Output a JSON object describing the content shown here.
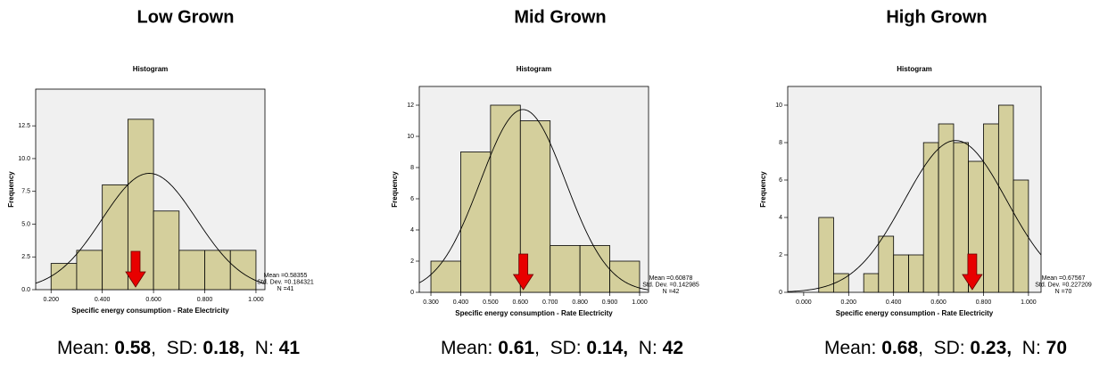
{
  "chart_data": [
    {
      "type": "histogram",
      "title": "Low Grown",
      "subtitle": "Histogram",
      "xlabel": "Specific energy consumption - Rate Electricity",
      "ylabel": "Frequency",
      "bins": [
        0.2,
        0.3,
        0.4,
        0.5,
        0.6,
        0.7,
        0.8,
        0.9,
        1.0
      ],
      "counts": [
        2,
        3,
        8,
        13,
        6,
        3,
        3,
        3
      ],
      "xlim": [
        0.14,
        1.035
      ],
      "ylim": [
        0,
        15.3
      ],
      "xticks": [
        {
          "value": 0.2,
          "label": "0.200"
        },
        {
          "value": 0.4,
          "label": "0.400"
        },
        {
          "value": 0.6,
          "label": "0.600"
        },
        {
          "value": 0.8,
          "label": "0.800"
        },
        {
          "value": 1.0,
          "label": "1.000"
        }
      ],
      "yticks": [
        {
          "value": 0,
          "label": "0.0"
        },
        2.5,
        {
          "value": 5,
          "label": "5.0"
        },
        7.5,
        {
          "value": 10,
          "label": "10.0"
        },
        12.5
      ],
      "color": "#d4cf9c",
      "stats": {
        "mean": {
          "value": 0.58355,
          "label": "Mean =0.58355"
        },
        "sd": {
          "value": 0.184321,
          "label": "Std. Dev. =0.184321"
        },
        "n": {
          "value": 41,
          "label": "N =41"
        }
      },
      "marker_x": 0.53,
      "marker_color": "#e80000",
      "caption": [
        {
          "text": "Mean: "
        },
        {
          "text": "0.58",
          "bold": true
        },
        {
          "text": ",  SD: "
        },
        {
          "text": "0.18,",
          "bold": true
        },
        {
          "text": "  N: "
        },
        {
          "text": "41",
          "bold": true
        }
      ]
    },
    {
      "type": "histogram",
      "title": "Mid Grown",
      "subtitle": "Histogram",
      "xlabel": "Specific energy consumption - Rate Electricity",
      "ylabel": "Frequency",
      "bins": [
        0.3,
        0.4,
        0.5,
        0.6,
        0.7,
        0.8,
        0.9,
        1.0
      ],
      "counts": [
        2,
        9,
        12,
        11,
        3,
        3,
        2
      ],
      "xlim": [
        0.261,
        1.03
      ],
      "ylim": [
        0,
        13.2
      ],
      "xticks": [
        {
          "value": 0.3,
          "label": "0.300"
        },
        {
          "value": 0.4,
          "label": "0.400"
        },
        {
          "value": 0.5,
          "label": "0.500"
        },
        {
          "value": 0.6,
          "label": "0.600"
        },
        {
          "value": 0.7,
          "label": "0.700"
        },
        {
          "value": 0.8,
          "label": "0.800"
        },
        {
          "value": 0.9,
          "label": "0.900"
        },
        {
          "value": 1.0,
          "label": "1.000"
        }
      ],
      "yticks": [
        0,
        2,
        4,
        6,
        8,
        10,
        12
      ],
      "color": "#d4cf9c",
      "stats": {
        "mean": {
          "value": 0.60878,
          "label": "Mean =0.60878"
        },
        "sd": {
          "value": 0.142985,
          "label": "Std. Dev. =0.142985"
        },
        "n": {
          "value": 42,
          "label": "N =42"
        }
      },
      "marker_x": 0.61,
      "marker_color": "#e80000",
      "caption": [
        {
          "text": "Mean: "
        },
        {
          "text": "0.61",
          "bold": true
        },
        {
          "text": ",  SD: "
        },
        {
          "text": "0.14,",
          "bold": true
        },
        {
          "text": "  N: "
        },
        {
          "text": "42",
          "bold": true
        }
      ]
    },
    {
      "type": "histogram",
      "title": "High Grown",
      "subtitle": "Histogram",
      "xlabel": "Specific energy consumption - Rate Electricity",
      "ylabel": "Frequency",
      "bins": [
        0.067,
        0.133,
        0.2,
        0.267,
        0.333,
        0.4,
        0.467,
        0.533,
        0.6,
        0.667,
        0.733,
        0.8,
        0.867,
        0.933,
        1.0
      ],
      "counts": [
        4,
        1,
        0,
        1,
        3,
        2,
        2,
        8,
        9,
        8,
        7,
        9,
        10,
        6
      ],
      "xlim": [
        -0.071,
        1.056
      ],
      "ylim": [
        0,
        11
      ],
      "xticks": [
        {
          "value": 0,
          "label": "0.000"
        },
        {
          "value": 0.2,
          "label": "0.200"
        },
        {
          "value": 0.4,
          "label": "0.400"
        },
        {
          "value": 0.6,
          "label": "0.600"
        },
        {
          "value": 0.8,
          "label": "0.800"
        },
        {
          "value": 1.0,
          "label": "1.000"
        }
      ],
      "yticks": [
        0,
        2,
        4,
        6,
        8,
        10
      ],
      "color": "#d4cf9c",
      "stats": {
        "mean": {
          "value": 0.67567,
          "label": "Mean =0.67567"
        },
        "sd": {
          "value": 0.227209,
          "label": "Std. Dev. =0.227209"
        },
        "n": {
          "value": 70,
          "label": "N =70"
        }
      },
      "marker_x": 0.75,
      "marker_color": "#e80000",
      "caption": [
        {
          "text": "Mean: "
        },
        {
          "text": "0.68",
          "bold": true
        },
        {
          "text": ",  SD: "
        },
        {
          "text": "0.23,",
          "bold": true
        },
        {
          "text": "  N: "
        },
        {
          "text": "70",
          "bold": true
        }
      ]
    }
  ]
}
